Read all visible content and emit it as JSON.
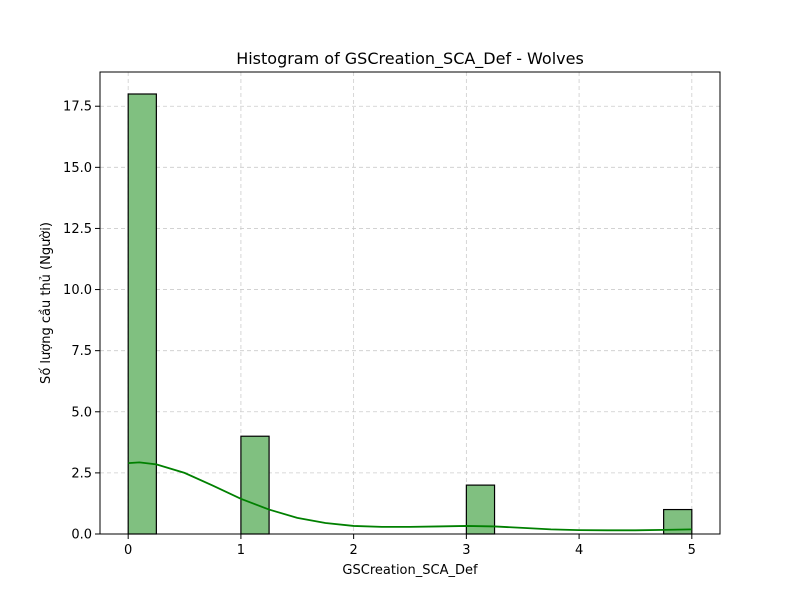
{
  "chart_data": {
    "type": "bar",
    "title": "Histogram of GSCreation_SCA_Def - Wolves",
    "xlabel": "GSCreation_SCA_Def",
    "ylabel": "Số lượng cầu thủ (Người)",
    "xlim": [
      -0.25,
      5.25
    ],
    "ylim": [
      0,
      18.9
    ],
    "x_ticks": [
      0,
      1,
      2,
      3,
      4,
      5
    ],
    "y_ticks": [
      0.0,
      2.5,
      5.0,
      7.5,
      10.0,
      12.5,
      15.0,
      17.5
    ],
    "x_tick_labels": [
      "0",
      "1",
      "2",
      "3",
      "4",
      "5"
    ],
    "y_tick_labels": [
      "0.0",
      "2.5",
      "5.0",
      "7.5",
      "10.0",
      "12.5",
      "15.0",
      "17.5"
    ],
    "bin_width": 0.25,
    "bins": [
      {
        "x0": 0.0,
        "x1": 0.25,
        "count": 18
      },
      {
        "x0": 1.0,
        "x1": 1.25,
        "count": 4
      },
      {
        "x0": 3.0,
        "x1": 3.25,
        "count": 2
      },
      {
        "x0": 4.75,
        "x1": 5.0,
        "count": 1
      }
    ],
    "kde": {
      "x": [
        0.0,
        0.1,
        0.25,
        0.5,
        0.75,
        1.0,
        1.25,
        1.5,
        1.75,
        2.0,
        2.25,
        2.5,
        2.75,
        3.0,
        3.25,
        3.5,
        3.75,
        4.0,
        4.25,
        4.5,
        4.75,
        5.0
      ],
      "y": [
        2.9,
        2.93,
        2.85,
        2.5,
        1.98,
        1.44,
        1.0,
        0.66,
        0.45,
        0.33,
        0.29,
        0.29,
        0.31,
        0.33,
        0.31,
        0.25,
        0.19,
        0.16,
        0.15,
        0.15,
        0.17,
        0.19
      ]
    },
    "colors": {
      "bar_fill": "#80c080",
      "bar_edge": "#000000",
      "kde_line": "#008000",
      "grid": "#cccccc"
    },
    "grid": true,
    "legend": "none"
  }
}
